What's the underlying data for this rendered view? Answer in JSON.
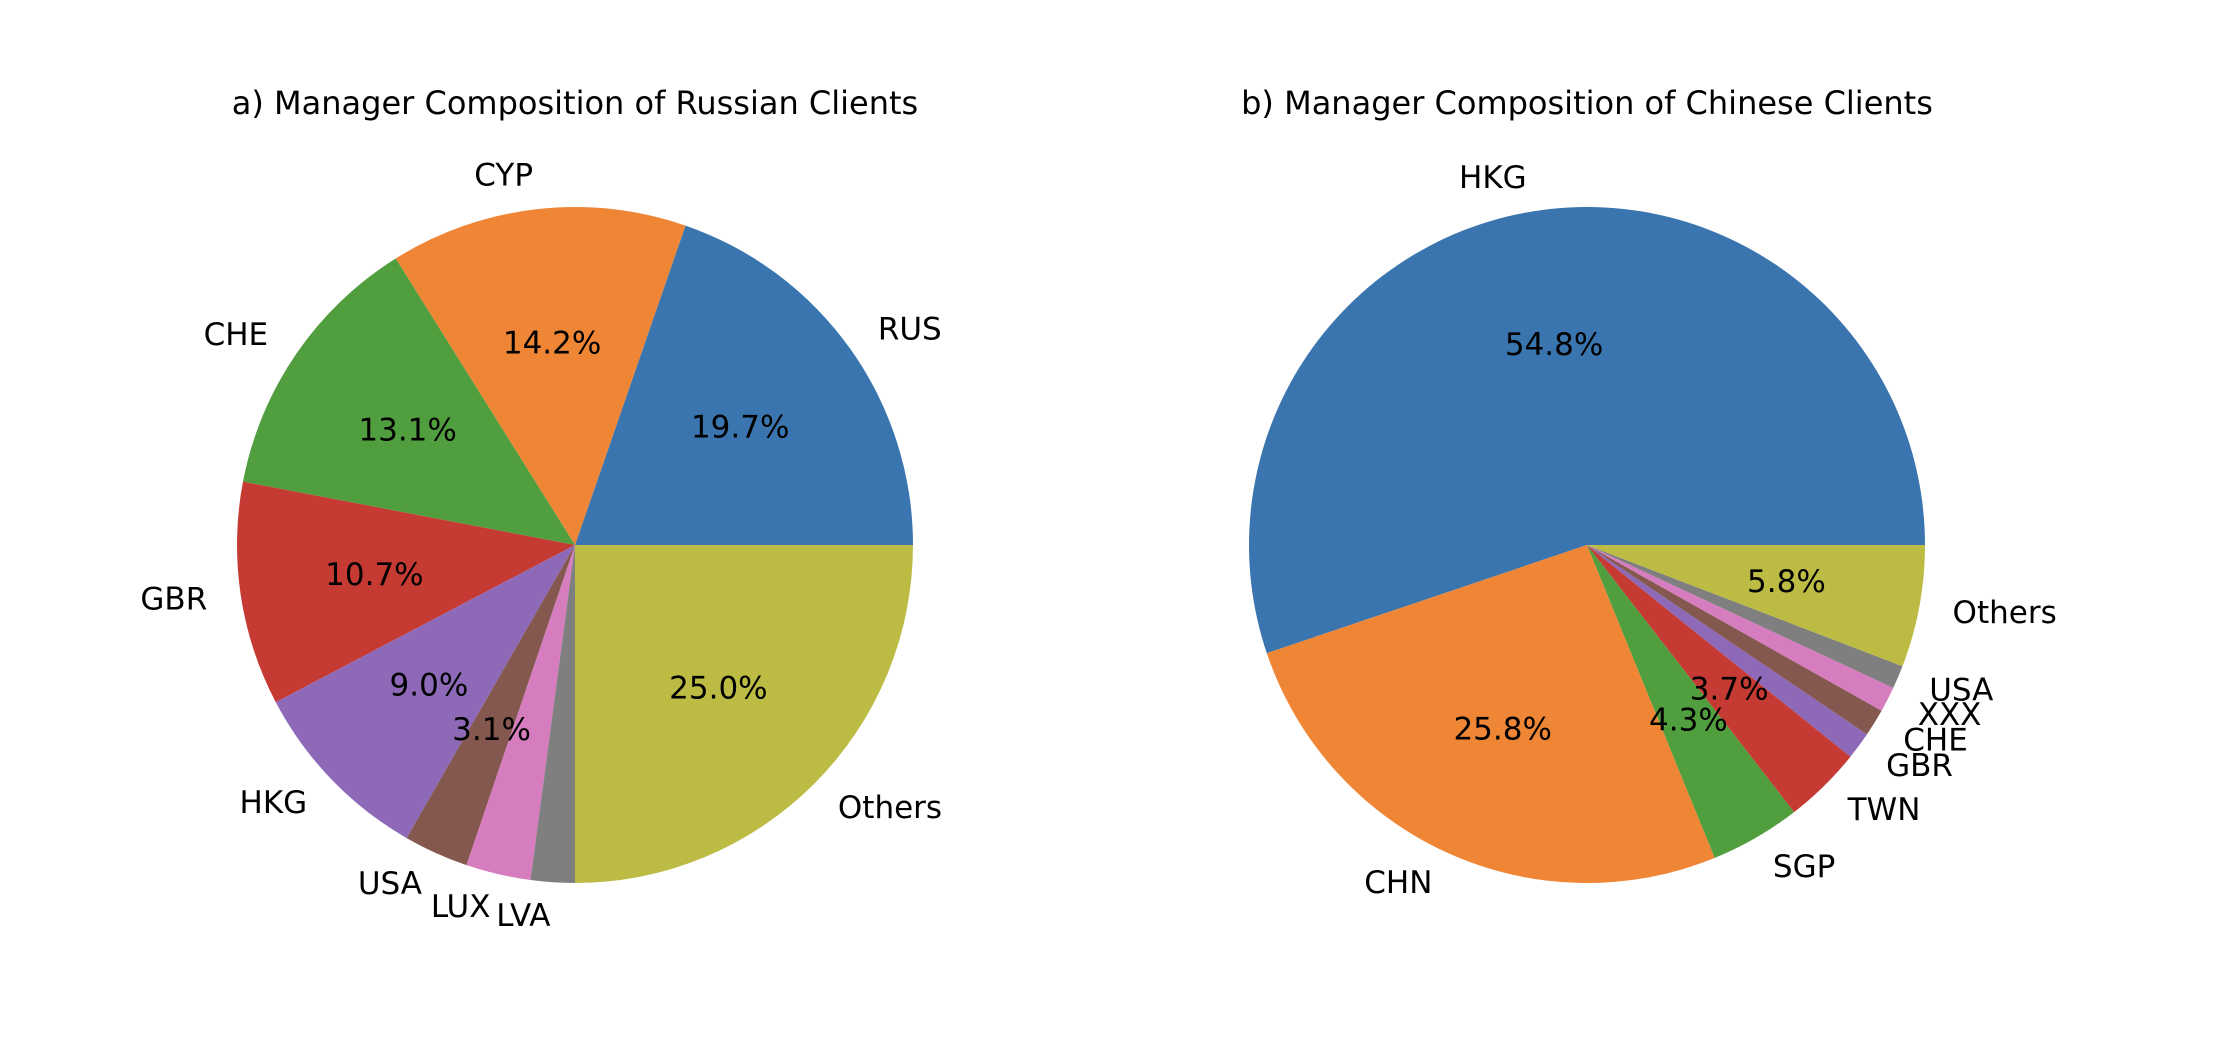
{
  "chart_data": [
    {
      "type": "pie",
      "title": "a) Manager Composition of Russian Clients",
      "slices": [
        {
          "label": "RUS",
          "value": 19.7,
          "pct_text": "19.7%",
          "color": "#3a75af"
        },
        {
          "label": "CYP",
          "value": 14.2,
          "pct_text": "14.2%",
          "color": "#ef8636"
        },
        {
          "label": "CHE",
          "value": 13.1,
          "pct_text": "13.1%",
          "color": "#519e3e"
        },
        {
          "label": "GBR",
          "value": 10.7,
          "pct_text": "10.7%",
          "color": "#c53a32"
        },
        {
          "label": "HKG",
          "value": 9.0,
          "pct_text": "9.0%",
          "color": "#8d69b8"
        },
        {
          "label": "USA",
          "value": 3.1,
          "pct_text": "3.1%",
          "color": "#84584e"
        },
        {
          "label": "LUX",
          "value": 3.1,
          "pct_text": "",
          "color": "#d57dbe"
        },
        {
          "label": "LVA",
          "value": 2.1,
          "pct_text": "",
          "color": "#7f7f7f"
        },
        {
          "label": "Others",
          "value": 25.0,
          "pct_text": "25.0%",
          "color": "#bcbc45"
        }
      ]
    },
    {
      "type": "pie",
      "title": "b) Manager Composition of Chinese Clients",
      "slices": [
        {
          "label": "HKG",
          "value": 54.8,
          "pct_text": "54.8%",
          "color": "#3a75af"
        },
        {
          "label": "CHN",
          "value": 25.8,
          "pct_text": "25.8%",
          "color": "#ef8636"
        },
        {
          "label": "SGP",
          "value": 4.3,
          "pct_text": "4.3%",
          "color": "#519e3e"
        },
        {
          "label": "TWN",
          "value": 3.7,
          "pct_text": "3.7%",
          "color": "#c53a32"
        },
        {
          "label": "GBR",
          "value": 1.3,
          "pct_text": "",
          "color": "#8d69b8"
        },
        {
          "label": "CHE",
          "value": 1.3,
          "pct_text": "",
          "color": "#84584e"
        },
        {
          "label": "XXX",
          "value": 1.2,
          "pct_text": "",
          "color": "#d57dbe"
        },
        {
          "label": "USA",
          "value": 1.1,
          "pct_text": "",
          "color": "#7f7f7f"
        },
        {
          "label": "Others",
          "value": 5.8,
          "pct_text": "5.8%",
          "color": "#bcbc45"
        }
      ]
    }
  ]
}
